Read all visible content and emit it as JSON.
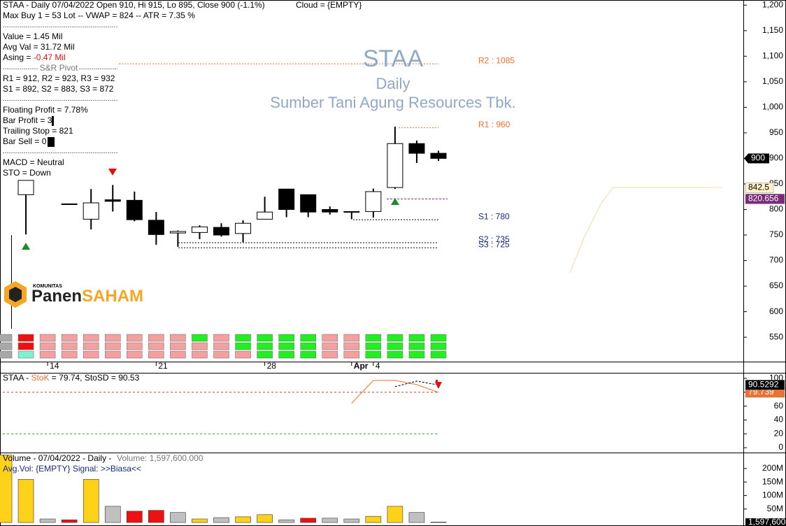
{
  "header": {
    "line1": "STAA - Daily 07/04/2022 Open 910, Hi 915, Lo 895, Close 900 (-1.1%)",
    "cloud": "Cloud = {EMPTY}",
    "line2": "Max Buy 1 = 53 Lot  --  VWAP = 824  --  ATR = 7.35 %"
  },
  "info_panel": {
    "value": "Value = 1.45 Mil",
    "avg_val": "Avg Val = 31.72 Mil",
    "asing_label": "Asing = ",
    "asing_value": "-0.47 Mil",
    "pivot_title": "S&R Pivot",
    "pivot_r": "R1 = 912, R2 = 923, R3 = 932",
    "pivot_s": "S1 = 892, S2 = 883, S3 = 872",
    "floating_profit": "Floating Profit = 7.78%",
    "bar_profit": "Bar Profit = 3",
    "trailing_stop": "Trailing Stop = 821",
    "bar_sell": "Bar Sell = 0",
    "macd": "MACD =  Neutral",
    "sto": "STO  =  Down"
  },
  "watermark": {
    "ticker": "STAA",
    "period": "Daily",
    "company": "Sumber Tani Agung Resources Tbk."
  },
  "logo": {
    "small": "KOMUNITAS",
    "part1": "Panen",
    "part2": "SAHAM"
  },
  "chart_data": [
    {
      "type": "candlestick",
      "categories": [
        null,
        null,
        "14",
        null,
        null,
        null,
        null,
        "21",
        null,
        null,
        null,
        null,
        "28",
        null,
        null,
        null,
        "Apr",
        "4",
        null,
        null,
        null
      ],
      "open": [
        null,
        829,
        null,
        811,
        781,
        819,
        818,
        779,
        754,
        755,
        765,
        753,
        781,
        840,
        829,
        800,
        796,
        796,
        843,
        929,
        910
      ],
      "high": [
        null,
        857,
        null,
        811,
        840,
        848,
        835,
        795,
        759,
        769,
        773,
        779,
        825,
        840,
        829,
        806,
        796,
        841,
        962,
        935,
        915
      ],
      "low": [
        null,
        751,
        null,
        811,
        761,
        796,
        777,
        731,
        727,
        742,
        747,
        736,
        781,
        785,
        785,
        790,
        781,
        784,
        840,
        891,
        895
      ],
      "close": [
        null,
        857,
        null,
        811,
        813,
        816,
        780,
        751,
        757,
        766,
        750,
        773,
        795,
        800,
        795,
        795,
        796,
        835,
        929,
        910,
        900
      ],
      "up_color": "#ffffff",
      "down_color": "#000000",
      "ylim": [
        505,
        1210
      ],
      "yticks": [
        {
          "value": 1200,
          "label": "1,200"
        },
        {
          "value": 1150,
          "label": "1,150"
        },
        {
          "value": 1100,
          "label": "1,100"
        },
        {
          "value": 1050,
          "label": "1,050"
        },
        {
          "value": 1000,
          "label": "1,000"
        },
        950,
        900,
        850,
        800,
        750,
        700,
        650,
        600,
        550
      ],
      "levels": [
        {
          "label": "R2 : 1085",
          "value": 1085,
          "color": "#f07030"
        },
        {
          "label": "R1 : 960",
          "value": 960,
          "color": "#f07030"
        },
        {
          "label": "S1 : 780",
          "value": 780,
          "color": "#1a2a80"
        },
        {
          "label": "S2 : 735",
          "value": 735,
          "color": "#1a2a80"
        },
        {
          "label": "S3 : 725",
          "value": 725,
          "color": "#1a2a80"
        }
      ],
      "price_tags": [
        {
          "value": 842.5,
          "color": "#fff1c8"
        },
        {
          "value": 820.656,
          "color": "#7a2a7a"
        }
      ],
      "signal_grid": [
        [
          "#a8a8a8",
          "#ee1111",
          "#f4a0a0",
          "#f4a0a0",
          "#f4a0a0",
          "#f4a0a0",
          "#f4a0a0",
          "#f4a0a0",
          "#f4a0a0",
          "#22ee22",
          "#f4a0a0",
          "#22ee22",
          "#22ee22",
          "#22ee22",
          "#22ee22",
          "#f4a0a0",
          "#f4a0a0",
          "#22ee22",
          "#22ee22",
          "#22ee22",
          "#22ee22"
        ],
        [
          "#a8a8a8",
          "#ee1111",
          "#f4a0a0",
          "#f4a0a0",
          "#f4a0a0",
          "#f4a0a0",
          "#f4a0a0",
          "#f4a0a0",
          "#f4a0a0",
          "#f4a0a0",
          "#f4a0a0",
          "#22ee22",
          "#22ee22",
          "#22ee22",
          "#22ee22",
          "#f4a0a0",
          "#f4a0a0",
          "#22ee22",
          "#22ee22",
          "#22ee22",
          "#22ee22"
        ],
        [
          "#a8a8a8",
          "#80f0d0",
          "#f4a0a0",
          "#f4a0a0",
          "#f4a0a0",
          "#f4a0a0",
          "#f4a0a0",
          "#f4a0a0",
          "#f4a0a0",
          "#f4a0a0",
          "#f4a0a0",
          "#f4a0a0",
          "#22ee22",
          "#22ee22",
          "#22ee22",
          "#f4a0a0",
          "#f4a0a0",
          "#22ee22",
          "#22ee22",
          "#22ee22",
          "#22ee22"
        ]
      ]
    },
    {
      "type": "line",
      "title_prefix": "STAA - ",
      "title_mid": " = 79.74, ",
      "title_suffix": " = 90.53",
      "series": [
        {
          "name": "StoK",
          "color": "#f07030",
          "values": [
            null,
            null,
            null,
            null,
            null,
            null,
            null,
            null,
            null,
            null,
            null,
            null,
            null,
            null,
            null,
            null,
            64,
            97,
            97,
            91,
            79.739
          ]
        },
        {
          "name": "StoSD",
          "color": "#000000",
          "dashed": true,
          "values": [
            null,
            null,
            null,
            null,
            null,
            null,
            null,
            null,
            null,
            null,
            null,
            null,
            null,
            null,
            null,
            null,
            null,
            null,
            88,
            96,
            90.5292
          ]
        }
      ],
      "ylim": [
        -6,
        107
      ],
      "yticks": [
        0,
        20,
        40,
        60,
        80,
        100
      ],
      "levels": [
        {
          "value": 80,
          "color": "#e03030"
        },
        {
          "value": 20,
          "color": "#30a030"
        }
      ]
    },
    {
      "type": "bar",
      "title": "Volume - 07/04/2022 - Daily - ",
      "title_value": "Volume: 1,597,600.000",
      "subtitle": "Avg.Vol: {EMPTY}   Signal: >>Biasa<<",
      "values": [
        250000000,
        160000000,
        13000000,
        10000000,
        160000000,
        60000000,
        42000000,
        45000000,
        37000000,
        13000000,
        18000000,
        21000000,
        29000000,
        10000000,
        16000000,
        16000000,
        13000000,
        23000000,
        60000000,
        37000000,
        1597600
      ],
      "colors": [
        "#ffd21a",
        "#ffd21a",
        "#c0c0c0",
        "#ee1111",
        "#ffd21a",
        "#c0c0c0",
        "#ee1111",
        "#ee1111",
        "#c0c0c0",
        "#ffd21a",
        "#c0c0c0",
        "#ffd21a",
        "#ffd21a",
        "#c0c0c0",
        "#ee1111",
        "#c0c0c0",
        "#c0c0c0",
        "#ffd21a",
        "#ffd21a",
        "#c0c0c0",
        "#ffffff"
      ],
      "last_tag": {
        "value": 1597600,
        "label": "1,597,600"
      },
      "ylim": [
        0,
        254000000
      ],
      "yticks": [
        {
          "value": 50000000,
          "label": "50M"
        },
        {
          "value": 100000000,
          "label": "100M"
        },
        {
          "value": 150000000,
          "label": "150M"
        },
        {
          "value": 200000000,
          "label": "200M"
        }
      ]
    }
  ]
}
